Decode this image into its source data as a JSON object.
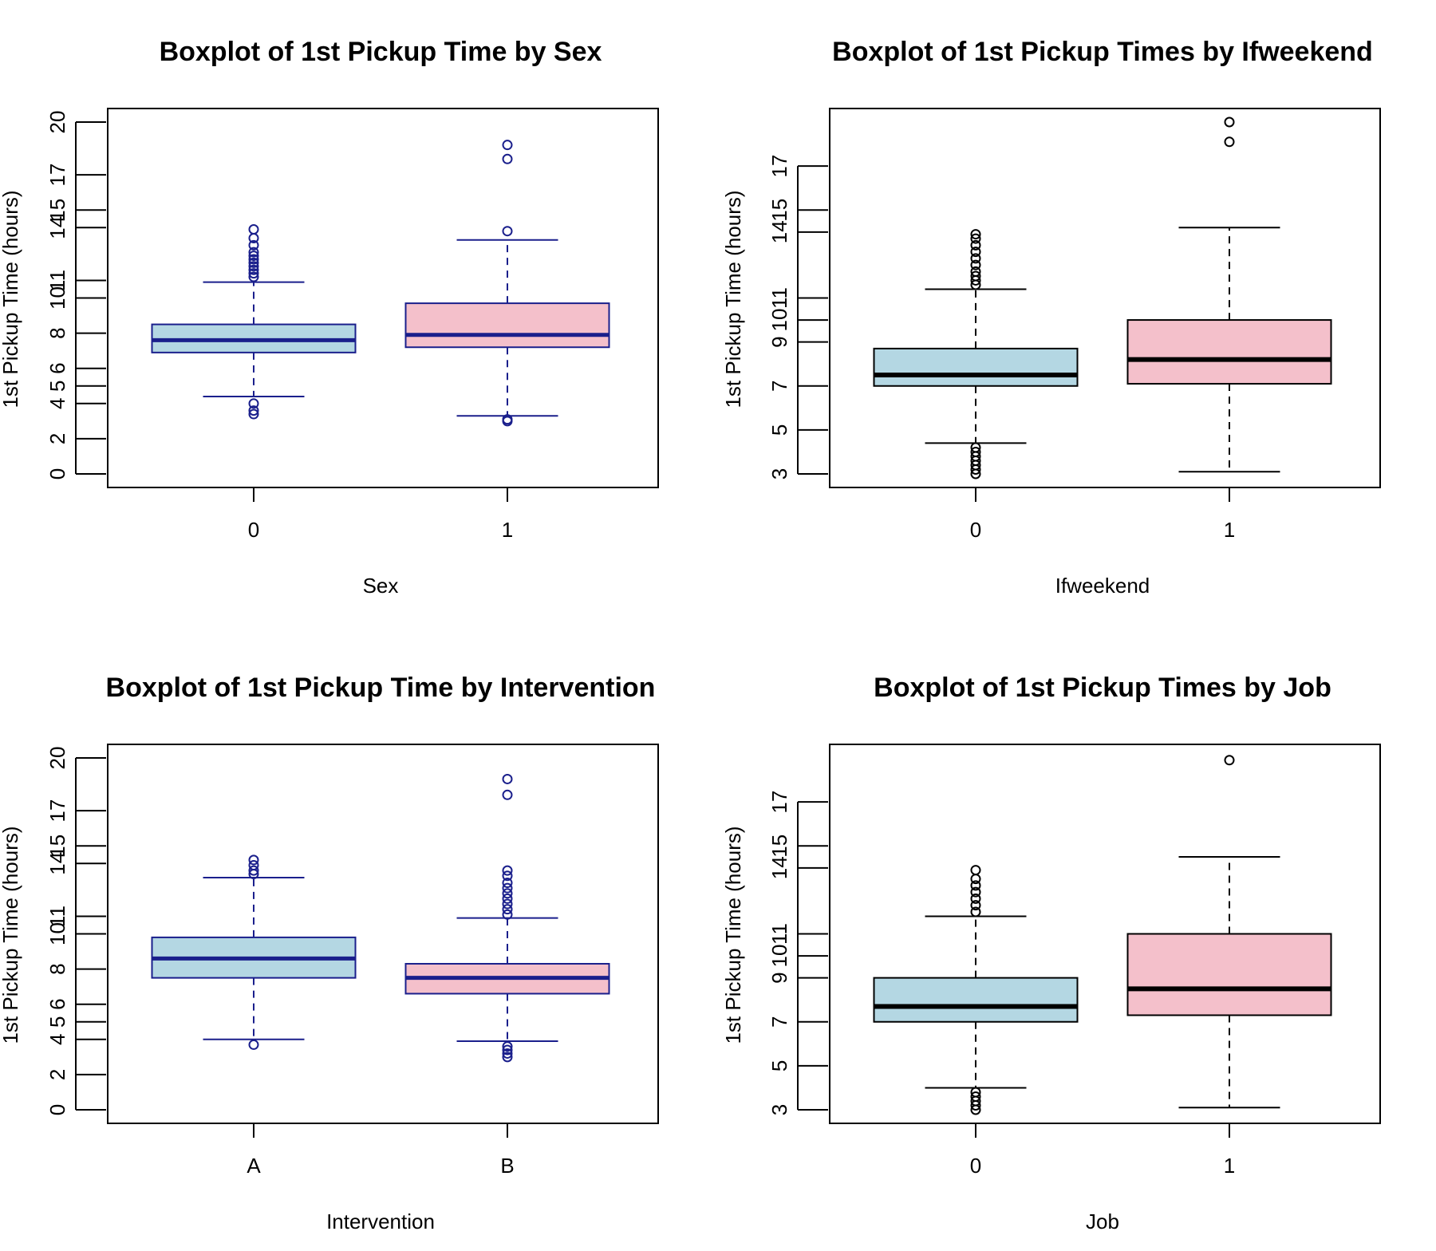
{
  "chart_data": [
    {
      "type": "boxplot",
      "title": "Boxplot of 1st Pickup Time by Sex",
      "xlabel": "Sex",
      "ylabel": "1st Pickup Time (hours)",
      "ylim": [
        0,
        20
      ],
      "yticks": [
        "0",
        "2",
        "4",
        "5",
        "6",
        "8",
        "10",
        "11",
        "14",
        "15",
        "17",
        "20"
      ],
      "categories": [
        "0",
        "1"
      ],
      "box_fill": [
        "#b4d7e3",
        "#f4c0cb"
      ],
      "stroke": "#1a1f8c",
      "boxes": [
        {
          "category": "0",
          "whisker_low": 4.4,
          "q1": 6.9,
          "median": 7.6,
          "q3": 8.5,
          "whisker_high": 10.9,
          "outliers": [
            4.0,
            3.6,
            3.4,
            11.2,
            11.4,
            11.6,
            11.8,
            12.0,
            12.2,
            12.4,
            12.6,
            13.0,
            13.4,
            13.9
          ]
        },
        {
          "category": "1",
          "whisker_low": 3.3,
          "q1": 7.2,
          "median": 7.9,
          "q3": 9.7,
          "whisker_high": 13.3,
          "outliers": [
            3.1,
            3.0,
            13.8,
            17.9,
            18.7
          ]
        }
      ]
    },
    {
      "type": "boxplot",
      "title": "Boxplot of 1st Pickup Times by Ifweekend",
      "xlabel": "Ifweekend",
      "ylabel": "1st Pickup Time (hours)",
      "ylim": [
        3,
        19
      ],
      "yticks": [
        "3",
        "5",
        "7",
        "9",
        "10",
        "11",
        "14",
        "15",
        "17"
      ],
      "categories": [
        "0",
        "1"
      ],
      "box_fill": [
        "#b4d7e3",
        "#f4c0cb"
      ],
      "stroke": "#000000",
      "boxes": [
        {
          "category": "0",
          "whisker_low": 4.4,
          "q1": 7.0,
          "median": 7.5,
          "q3": 8.7,
          "whisker_high": 11.4,
          "outliers": [
            3.0,
            3.2,
            3.4,
            3.6,
            3.8,
            4.0,
            4.2,
            11.6,
            11.8,
            12.0,
            12.2,
            12.5,
            12.8,
            13.1,
            13.4,
            13.7,
            13.9
          ]
        },
        {
          "category": "1",
          "whisker_low": 3.1,
          "q1": 7.1,
          "median": 8.2,
          "q3": 10.0,
          "whisker_high": 14.2,
          "outliers": [
            18.1,
            19.0
          ]
        }
      ]
    },
    {
      "type": "boxplot",
      "title": "Boxplot of 1st Pickup Time by Intervention",
      "xlabel": "Intervention",
      "ylabel": "1st Pickup Time (hours)",
      "ylim": [
        0,
        20
      ],
      "yticks": [
        "0",
        "2",
        "4",
        "5",
        "6",
        "8",
        "10",
        "11",
        "14",
        "15",
        "17",
        "20"
      ],
      "categories": [
        "A",
        "B"
      ],
      "box_fill": [
        "#b4d7e3",
        "#f4c0cb"
      ],
      "stroke": "#1a1f8c",
      "boxes": [
        {
          "category": "A",
          "whisker_low": 4.0,
          "q1": 7.5,
          "median": 8.6,
          "q3": 9.8,
          "whisker_high": 13.2,
          "outliers": [
            3.7,
            13.4,
            13.6,
            13.9,
            14.2
          ]
        },
        {
          "category": "B",
          "whisker_low": 3.9,
          "q1": 6.6,
          "median": 7.5,
          "q3": 8.3,
          "whisker_high": 10.9,
          "outliers": [
            3.0,
            3.2,
            3.4,
            3.6,
            11.1,
            11.4,
            11.7,
            12.0,
            12.3,
            12.6,
            12.9,
            13.3,
            13.6,
            17.9,
            18.8
          ]
        }
      ]
    },
    {
      "type": "boxplot",
      "title": "Boxplot of 1st Pickup Times by Job",
      "xlabel": "Job",
      "ylabel": "1st Pickup Time (hours)",
      "ylim": [
        3,
        19
      ],
      "yticks": [
        "3",
        "5",
        "7",
        "9",
        "10",
        "11",
        "14",
        "15",
        "17"
      ],
      "categories": [
        "0",
        "1"
      ],
      "box_fill": [
        "#b4d7e3",
        "#f4c0cb"
      ],
      "stroke": "#000000",
      "boxes": [
        {
          "category": "0",
          "whisker_low": 4.0,
          "q1": 7.0,
          "median": 7.7,
          "q3": 9.0,
          "whisker_high": 11.8,
          "outliers": [
            3.0,
            3.2,
            3.4,
            3.6,
            3.8,
            12.0,
            12.3,
            12.6,
            12.9,
            13.2,
            13.5,
            13.9
          ]
        },
        {
          "category": "1",
          "whisker_low": 3.1,
          "q1": 7.3,
          "median": 8.5,
          "q3": 11.0,
          "whisker_high": 14.5,
          "outliers": [
            18.9
          ]
        }
      ]
    }
  ]
}
